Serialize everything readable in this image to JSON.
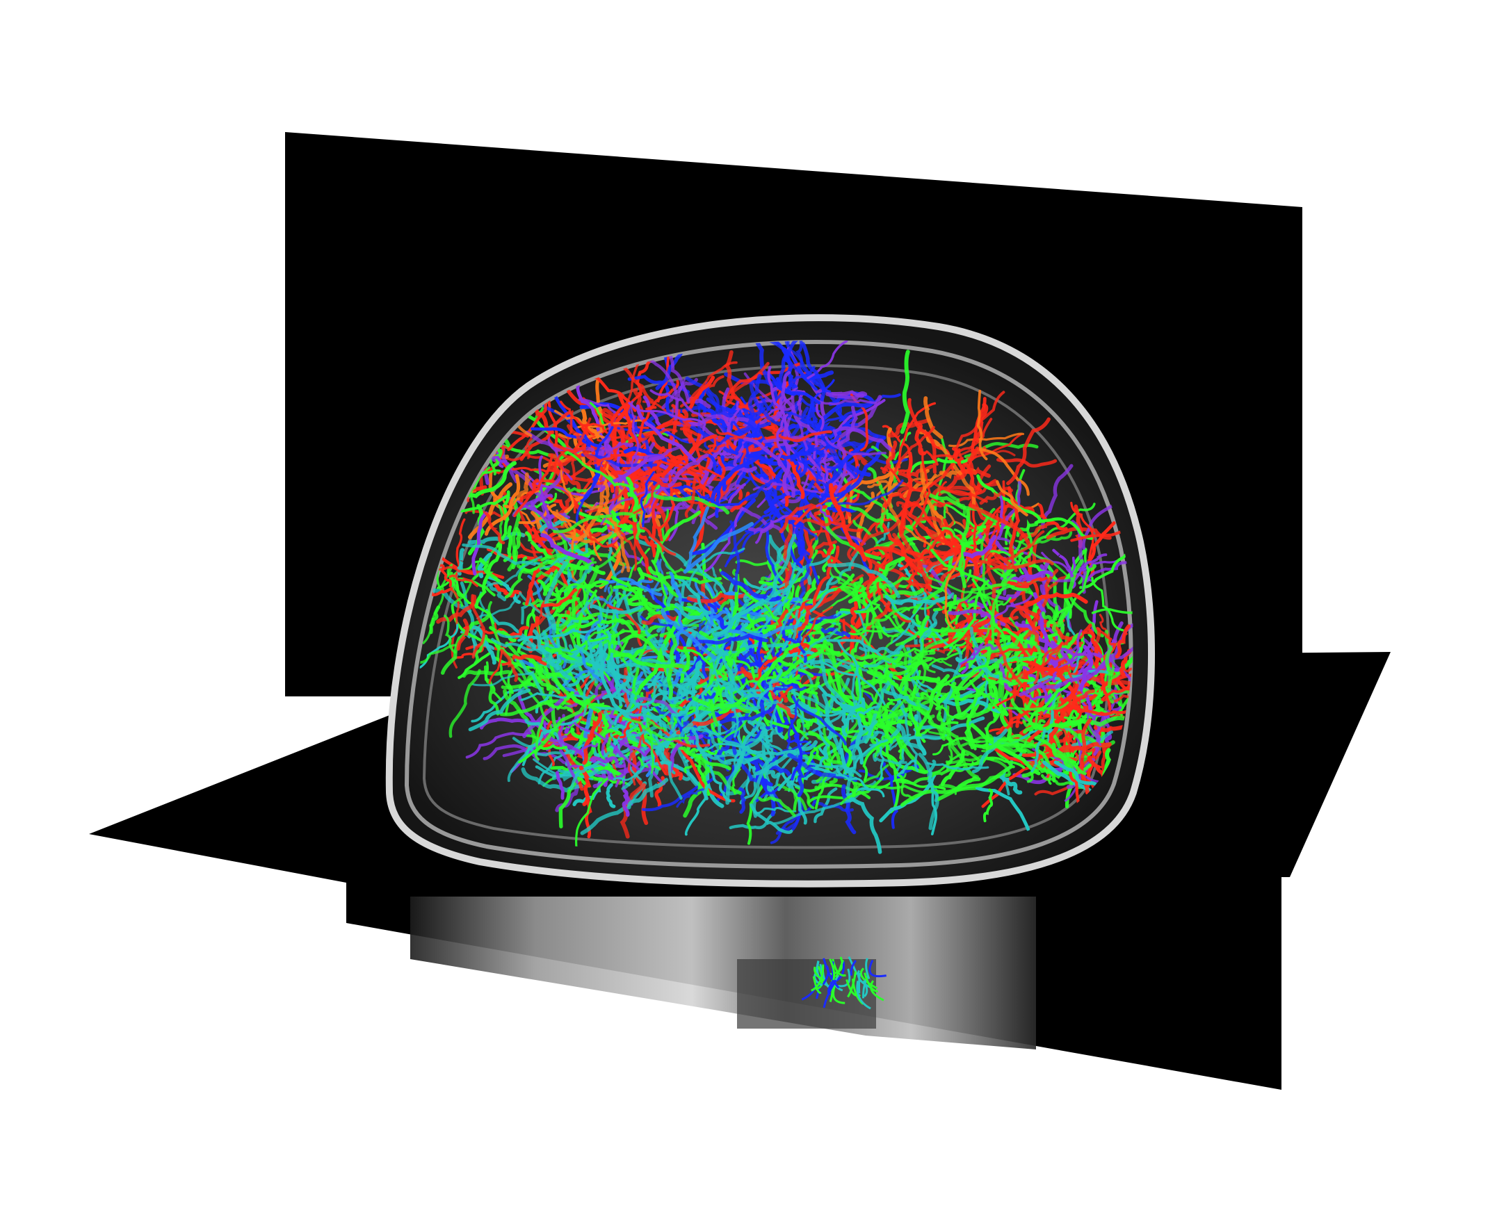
{
  "scene": {
    "background_color": "#ffffff",
    "plane_color": "#000000",
    "mri_tint": "#cfcfcf",
    "fiber_palette": [
      "#ff2a1a",
      "#1a2bff",
      "#2bff2b",
      "#23c7c2",
      "#8a35e6",
      "#ff7a1a",
      "#2a8cff"
    ],
    "components": [
      "sagittal-slice-plane",
      "axial-slice-plane",
      "coronal-lower-slice",
      "mri-skull-outline",
      "dti-fiber-tractography"
    ]
  }
}
